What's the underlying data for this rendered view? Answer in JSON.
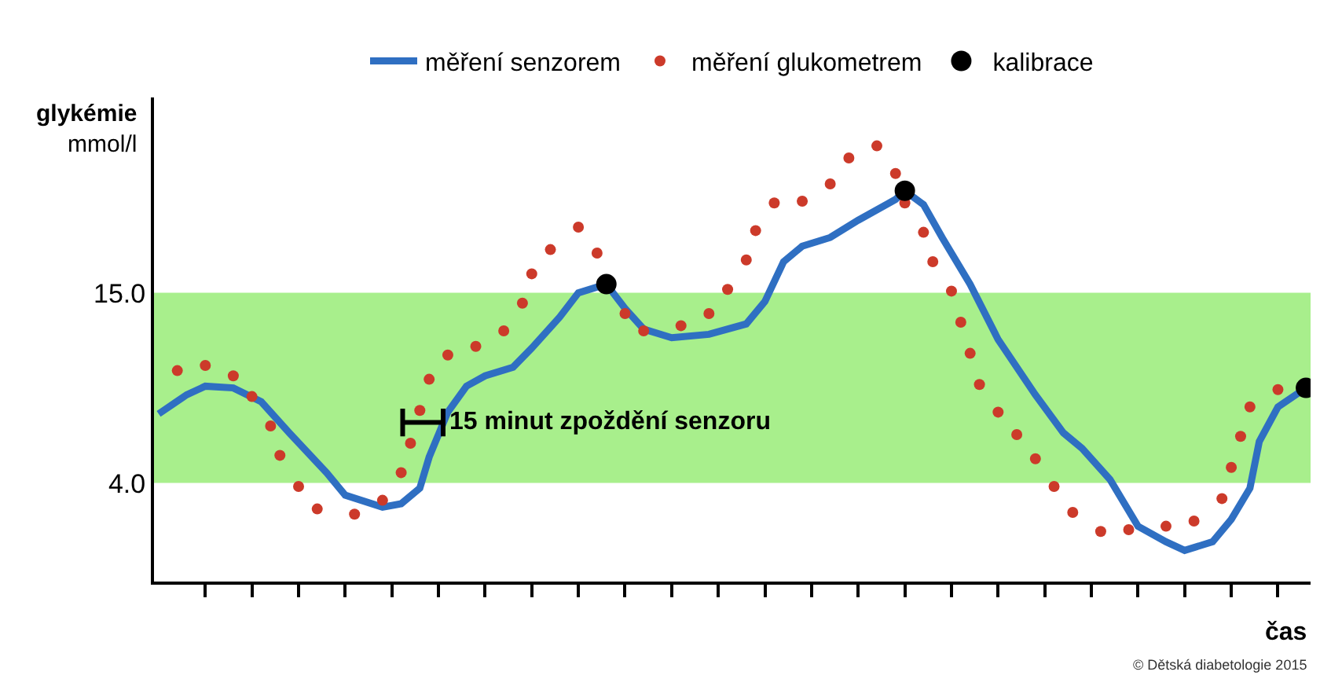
{
  "chart_data": {
    "type": "line",
    "xlabel": "čas",
    "ylabel": "glykémie\nmmol/l",
    "categories": [
      null,
      null,
      null,
      null,
      null,
      null,
      null,
      null,
      null,
      null,
      null,
      null,
      null,
      null,
      null,
      null,
      null,
      null,
      null,
      null,
      null,
      null,
      null,
      null,
      null,
      null,
      null,
      null,
      null,
      null,
      null,
      null,
      null,
      null,
      null,
      null,
      null,
      null,
      null,
      null,
      null,
      null,
      null,
      null,
      null,
      null,
      null,
      null,
      null,
      null,
      null,
      null,
      null,
      null,
      null,
      null,
      null,
      null,
      null,
      null,
      null,
      null,
      null,
      null,
      null,
      null,
      null,
      null,
      null,
      null,
      null,
      null,
      null,
      null,
      null,
      null,
      null,
      null,
      null,
      null,
      null,
      null,
      null,
      null,
      null,
      null,
      null,
      null,
      null,
      null,
      null,
      null,
      null,
      null,
      null,
      null,
      null,
      null,
      null,
      null,
      null,
      null,
      null,
      null,
      null,
      null,
      null,
      null,
      null,
      null,
      null,
      null,
      null,
      null,
      null,
      null,
      null,
      null,
      null,
      null,
      null,
      null,
      null,
      null
    ],
    "ylim": [
      -1.7,
      26.3
    ],
    "yticks": [
      {
        "value": 4,
        "label": "4.0"
      },
      {
        "value": 15,
        "label": "15.0"
      }
    ],
    "legend": "top",
    "bands": [
      {
        "axis": "y",
        "from": 4,
        "to": 15,
        "color": "#a8ef8c"
      }
    ],
    "series": [
      {
        "name": "měření glukometrem",
        "type": "scatter",
        "marker": "circle",
        "color": "#cc3a2a",
        "values": [
          null,
          null,
          10.5,
          null,
          null,
          10.8,
          null,
          null,
          10.2,
          null,
          9.0,
          null,
          7.3,
          5.6,
          null,
          3.8,
          null,
          2.5,
          null,
          null,
          null,
          2.2,
          null,
          null,
          3.0,
          null,
          4.6,
          6.3,
          8.2,
          10.0,
          null,
          11.4,
          null,
          null,
          11.9,
          null,
          null,
          12.8,
          null,
          14.4,
          16.1,
          null,
          17.5,
          null,
          null,
          18.8,
          null,
          17.3,
          null,
          null,
          13.8,
          null,
          12.8,
          null,
          null,
          null,
          13.1,
          null,
          null,
          13.8,
          null,
          15.2,
          null,
          16.9,
          18.6,
          null,
          20.2,
          null,
          null,
          20.3,
          null,
          null,
          21.3,
          null,
          22.8,
          null,
          null,
          23.5,
          null,
          21.9,
          20.2,
          null,
          18.5,
          16.8,
          null,
          15.1,
          13.3,
          11.5,
          9.7,
          null,
          8.1,
          null,
          6.8,
          null,
          5.4,
          null,
          3.8,
          null,
          2.3,
          null,
          null,
          1.2,
          null,
          null,
          1.3,
          null,
          null,
          null,
          1.5,
          null,
          null,
          1.8,
          null,
          null,
          3.1,
          4.9,
          6.7,
          8.4,
          null,
          null,
          9.4,
          null,
          null,
          null
        ]
      },
      {
        "name": "měření senzorem",
        "line_style": "solid",
        "color": "#2f6fc2",
        "values": [
          8.0,
          null,
          null,
          9.1,
          null,
          9.6,
          null,
          null,
          9.5,
          null,
          null,
          8.7,
          null,
          null,
          6.9,
          null,
          null,
          null,
          4.6,
          null,
          3.3,
          null,
          null,
          null,
          2.6,
          null,
          2.8,
          null,
          3.7,
          5.5,
          null,
          8.1,
          null,
          9.6,
          null,
          10.2,
          null,
          null,
          10.7,
          null,
          11.8,
          null,
          null,
          13.6,
          null,
          15.0,
          null,
          null,
          15.5,
          null,
          14.1,
          null,
          12.9,
          null,
          null,
          12.4,
          null,
          null,
          null,
          12.6,
          null,
          null,
          null,
          13.2,
          null,
          14.5,
          null,
          16.8,
          null,
          17.7,
          null,
          null,
          18.2,
          null,
          null,
          19.2,
          null,
          null,
          null,
          20.4,
          20.9,
          null,
          20.1,
          null,
          18.2,
          null,
          null,
          15.5,
          null,
          null,
          12.3,
          null,
          null,
          null,
          9.1,
          null,
          null,
          6.9,
          null,
          6.0,
          null,
          null,
          4.2,
          null,
          null,
          1.5,
          null,
          null,
          0.6,
          null,
          0.1,
          null,
          null,
          0.6,
          null,
          1.9,
          null,
          3.7,
          6.4,
          null,
          8.4,
          null,
          null,
          9.5
        ]
      },
      {
        "name": "kalibrace",
        "type": "scatter",
        "marker": "circle",
        "color": "#000000",
        "values": [
          null,
          null,
          null,
          null,
          null,
          null,
          null,
          null,
          null,
          null,
          null,
          null,
          null,
          null,
          null,
          null,
          null,
          null,
          null,
          null,
          null,
          null,
          null,
          null,
          null,
          null,
          null,
          null,
          null,
          null,
          null,
          null,
          null,
          null,
          null,
          null,
          null,
          null,
          null,
          null,
          null,
          null,
          null,
          null,
          null,
          null,
          null,
          null,
          15.5,
          null,
          null,
          null,
          null,
          null,
          null,
          null,
          null,
          null,
          null,
          null,
          null,
          null,
          null,
          null,
          null,
          null,
          null,
          null,
          null,
          null,
          null,
          null,
          null,
          null,
          null,
          null,
          null,
          null,
          null,
          null,
          20.9,
          null,
          null,
          null,
          null,
          null,
          null,
          null,
          null,
          null,
          null,
          null,
          null,
          null,
          null,
          null,
          null,
          null,
          null,
          null,
          null,
          null,
          null,
          null,
          null,
          null,
          null,
          null,
          null,
          null,
          null,
          null,
          null,
          null,
          null,
          null,
          null,
          null,
          null,
          null,
          null,
          null,
          null,
          9.5
        ]
      }
    ],
    "annotations": [
      "15 minut zpoždění senzoru",
      "© Dětská diabetologie 2015"
    ]
  }
}
